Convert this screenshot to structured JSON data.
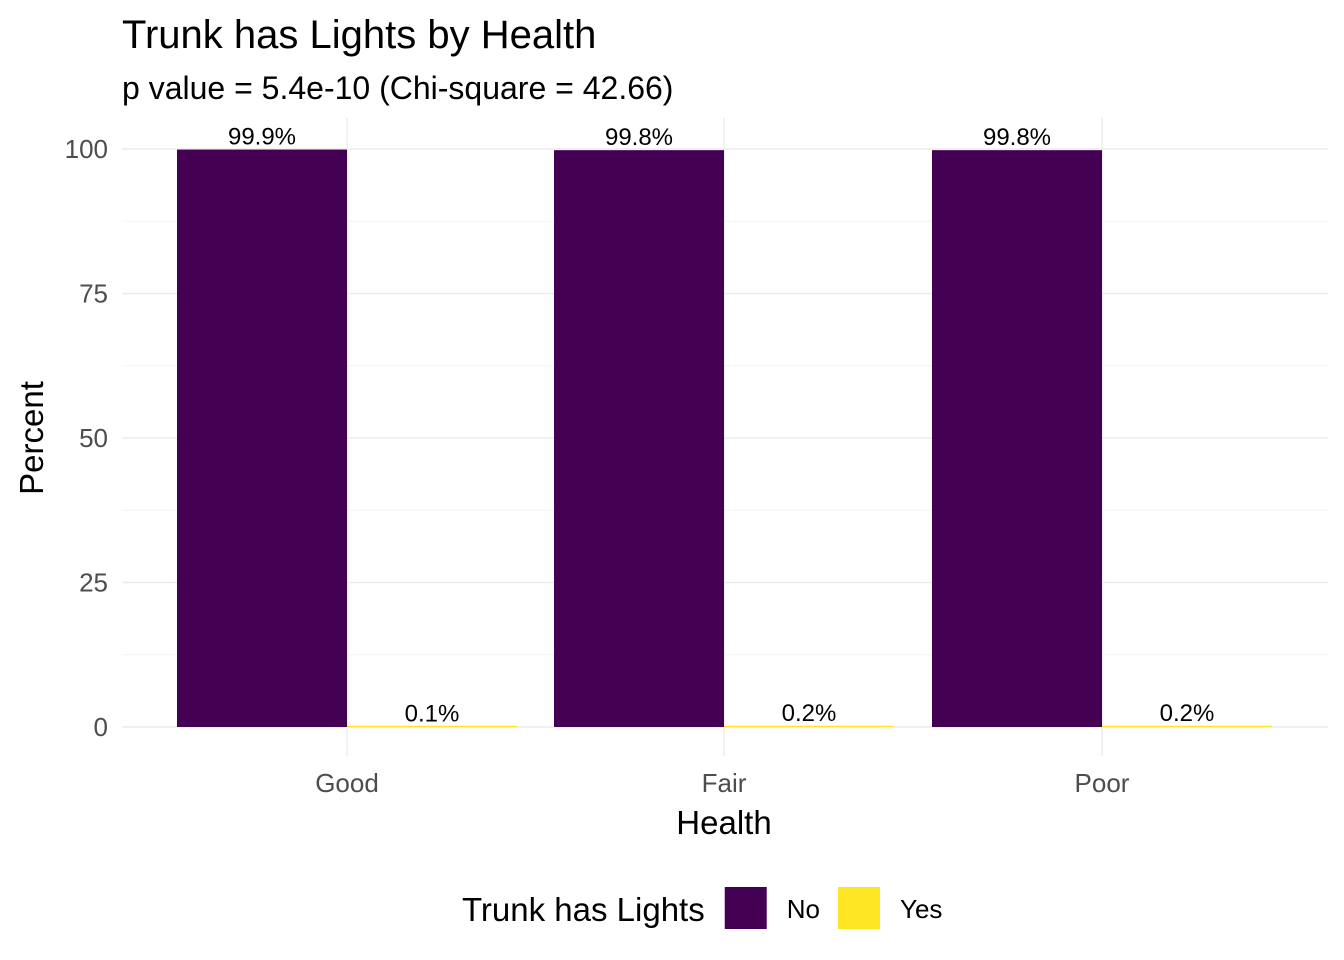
{
  "chart_data": {
    "type": "bar",
    "title": "Trunk has Lights by Health",
    "subtitle": "p value = 5.4e-10 (Chi-square = 42.66)",
    "xlabel": "Health",
    "ylabel": "Percent",
    "categories": [
      "Good",
      "Fair",
      "Poor"
    ],
    "series": [
      {
        "name": "No",
        "values": [
          99.9,
          99.8,
          99.8
        ],
        "labels": [
          "99.9%",
          "99.8%",
          "99.8%"
        ],
        "color": "#440154"
      },
      {
        "name": "Yes",
        "values": [
          0.1,
          0.2,
          0.2
        ],
        "labels": [
          "0.1%",
          "0.2%",
          "0.2%"
        ],
        "color": "#FDE725"
      }
    ],
    "ylim": [
      0,
      100
    ],
    "yticks": [
      0,
      25,
      50,
      75,
      100
    ],
    "ytick_labels": [
      "0",
      "25",
      "50",
      "75",
      "100"
    ],
    "grid": true,
    "legend": {
      "title": "Trunk has Lights",
      "position": "bottom"
    }
  }
}
